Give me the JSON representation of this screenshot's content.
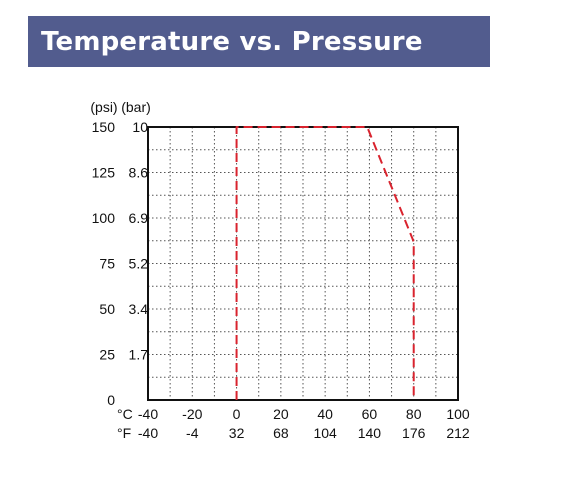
{
  "title": "Temperature vs. Pressure",
  "colors": {
    "banner": "#525c8e",
    "boundary": "#d9232e",
    "grid": "#555555",
    "axis": "#111111"
  },
  "chart_data": {
    "type": "line",
    "title": "Temperature vs. Pressure",
    "xlim": [
      -40,
      100
    ],
    "ylim": [
      0,
      150
    ],
    "grid": true,
    "axis_units": {
      "psi": "(psi)",
      "bar": "(bar)",
      "c": "°C",
      "f": "°F"
    },
    "x_ticks_c": [
      "-40",
      "-20",
      "0",
      "20",
      "40",
      "60",
      "80",
      "100"
    ],
    "x_ticks_f": [
      "-40",
      "-4",
      "32",
      "68",
      "104",
      "140",
      "176",
      "212"
    ],
    "y_ticks_psi": [
      "0",
      "25",
      "50",
      "75",
      "100",
      "125",
      "150"
    ],
    "y_ticks_bar": [
      "1.7",
      "3.4",
      "5.2",
      "6.9",
      "8.6",
      "10"
    ],
    "y_tick_values_psi": [
      0,
      25,
      50,
      75,
      100,
      125,
      150
    ],
    "y_tick_values_bar": [
      25,
      50,
      75,
      100,
      125,
      150
    ],
    "series": [
      {
        "x": [
          0,
          0,
          59,
          80,
          80
        ],
        "y": [
          0,
          150,
          150,
          87,
          0
        ],
        "style": "dashed",
        "color": "#d9232e"
      }
    ]
  }
}
